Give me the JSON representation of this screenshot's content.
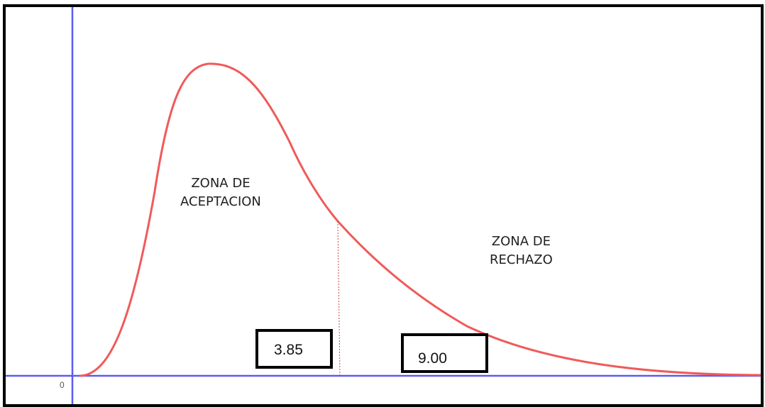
{
  "diagram": {
    "origin_label": "0",
    "zones": {
      "acceptance": [
        "ZONA DE",
        "ACEPTACION"
      ],
      "rejection": [
        "ZONA DE",
        "RECHAZO"
      ]
    },
    "critical_value": "3.85",
    "test_statistic": "9.00",
    "colors": {
      "axes": "#5b5bf0",
      "curve": "#f05a5a",
      "critical_line": "#c44"
    }
  }
}
